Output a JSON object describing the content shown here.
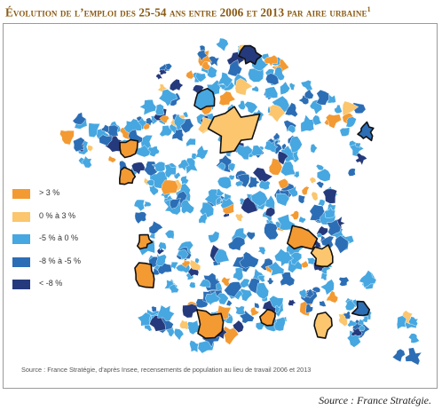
{
  "title": "Évolution de l’emploi des 25-54 ans entre 2006 et 2013 par aire urbaine",
  "title_note": "1",
  "legend": [
    {
      "label": "> 3 %",
      "color": "#f39a33"
    },
    {
      "label": "0 % à 3 %",
      "color": "#fbc66d"
    },
    {
      "label": "-5 % à 0 %",
      "color": "#47a7e0"
    },
    {
      "label": "-8 % à -5 %",
      "color": "#2c6eb5"
    },
    {
      "label": "< -8 %",
      "color": "#253a7c"
    }
  ],
  "map_source": "Source : France Stratégie, d'après Insee, recensements de population au lieu de travail 2006 et 2013",
  "page_source": "Source : France Stratégie.",
  "highlight_outline": "#111111"
}
